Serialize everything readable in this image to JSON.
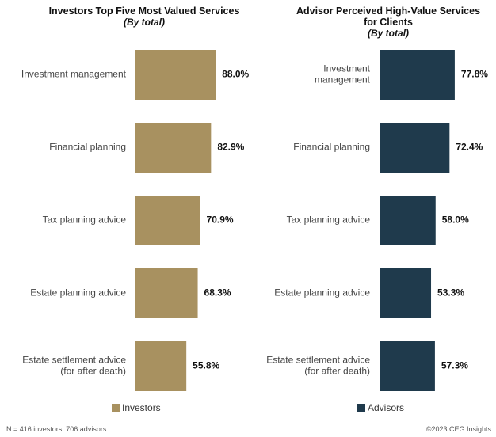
{
  "chart_data": [
    {
      "type": "bar",
      "orientation": "horizontal",
      "title": "Investors Top Five Most Valued Services",
      "subtitle": "(By total)",
      "categories": [
        "Investment management",
        "Financial planning",
        "Tax planning advice",
        "Estate planning advice",
        "Estate settlement advice\n(for after death)"
      ],
      "series": [
        {
          "name": "Investors",
          "color": "#A89160",
          "values": [
            88.0,
            82.9,
            70.9,
            68.3,
            55.8
          ]
        }
      ],
      "value_labels": [
        "88.0%",
        "82.9%",
        "70.9%",
        "68.3%",
        "55.8%"
      ],
      "xlim": [
        0,
        100
      ],
      "grid": false,
      "legend": "bottom"
    },
    {
      "type": "bar",
      "orientation": "horizontal",
      "title": "Advisor Perceived High-Value Services\nfor Clients",
      "subtitle": "(By total)",
      "categories": [
        "Investment\nmanagement",
        "Financial planning",
        "Tax planning advice",
        "Estate planning advice",
        "Estate settlement advice\n(for after death)"
      ],
      "series": [
        {
          "name": "Advisors",
          "color": "#1F3A4C",
          "values": [
            77.8,
            72.4,
            58.0,
            53.3,
            57.3
          ]
        }
      ],
      "value_labels": [
        "77.8%",
        "72.4%",
        "58.0%",
        "53.3%",
        "57.3%"
      ],
      "xlim": [
        0,
        100
      ],
      "grid": false,
      "legend": "bottom"
    }
  ],
  "footer": {
    "note": "N = 416 investors.  706 advisors.",
    "copyright": "©2023 CEG Insights"
  }
}
